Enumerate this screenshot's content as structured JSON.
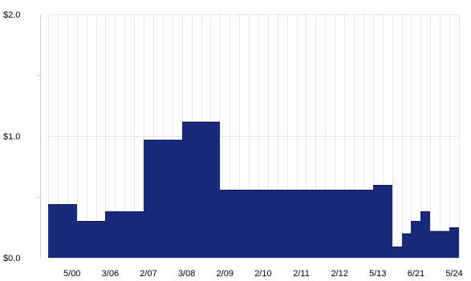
{
  "chart_data": {
    "type": "bar",
    "title": "",
    "xlabel": "",
    "ylabel": "",
    "ylim": [
      0,
      2.0
    ],
    "grid": true,
    "colors": {
      "bar": "#1a2a7a",
      "bar_edge": "#0d1650",
      "grid": "#e6e6e6",
      "background": "#ffffff"
    },
    "y_ticks": [
      {
        "value": 0.0,
        "label": "$0.0"
      },
      {
        "value": 1.0,
        "label": "$1.0"
      },
      {
        "value": 2.0,
        "label": "$2.0"
      }
    ],
    "x_tick_labels": [
      {
        "index": 2,
        "label": "5/00"
      },
      {
        "index": 6,
        "label": "3/06"
      },
      {
        "index": 10,
        "label": "2/07"
      },
      {
        "index": 14,
        "label": "3/08"
      },
      {
        "index": 18,
        "label": "2/09"
      },
      {
        "index": 22,
        "label": "2/10"
      },
      {
        "index": 26,
        "label": "2/11"
      },
      {
        "index": 30,
        "label": "2/12"
      },
      {
        "index": 34,
        "label": "5/13"
      },
      {
        "index": 38,
        "label": "6/21"
      },
      {
        "index": 42,
        "label": "5/24"
      }
    ],
    "values": [
      0.44,
      0.44,
      0.44,
      0.3,
      0.3,
      0.3,
      0.38,
      0.38,
      0.38,
      0.38,
      0.97,
      0.97,
      0.97,
      0.97,
      1.12,
      1.12,
      1.12,
      1.12,
      0.56,
      0.56,
      0.56,
      0.56,
      0.56,
      0.56,
      0.56,
      0.56,
      0.56,
      0.56,
      0.56,
      0.56,
      0.56,
      0.56,
      0.56,
      0.56,
      0.6,
      0.6,
      0.09,
      0.2,
      0.3,
      0.38,
      0.22,
      0.22,
      0.25
    ]
  }
}
